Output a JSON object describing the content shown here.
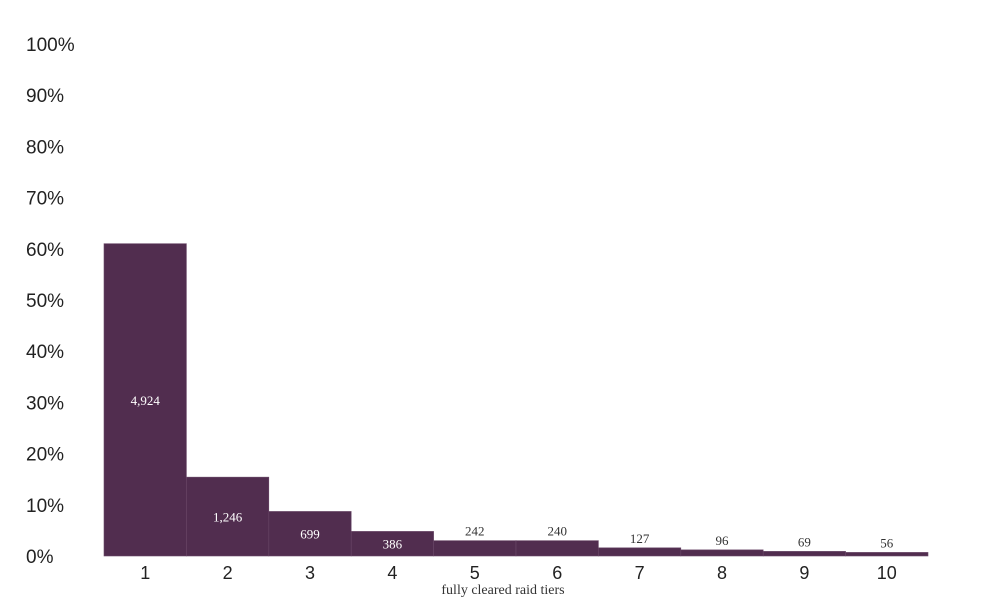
{
  "chart_data": {
    "type": "bar",
    "xlabel": "fully cleared raid tiers",
    "ylabel": "",
    "ylim": [
      0,
      100
    ],
    "yticks": [
      "0%",
      "10%",
      "20%",
      "30%",
      "40%",
      "50%",
      "60%",
      "70%",
      "80%",
      "90%",
      "100%"
    ],
    "grid": false,
    "bar_color": "#512d4f",
    "categories": [
      "1",
      "2",
      "3",
      "4",
      "5",
      "6",
      "7",
      "8",
      "9",
      "10"
    ],
    "values": [
      61.0,
      15.4,
      8.7,
      4.8,
      3.0,
      3.0,
      1.6,
      1.2,
      0.9,
      0.7
    ],
    "data_labels": [
      "4,924",
      "1,246",
      "699",
      "386",
      "242",
      "240",
      "127",
      "96",
      "69",
      "56"
    ]
  }
}
